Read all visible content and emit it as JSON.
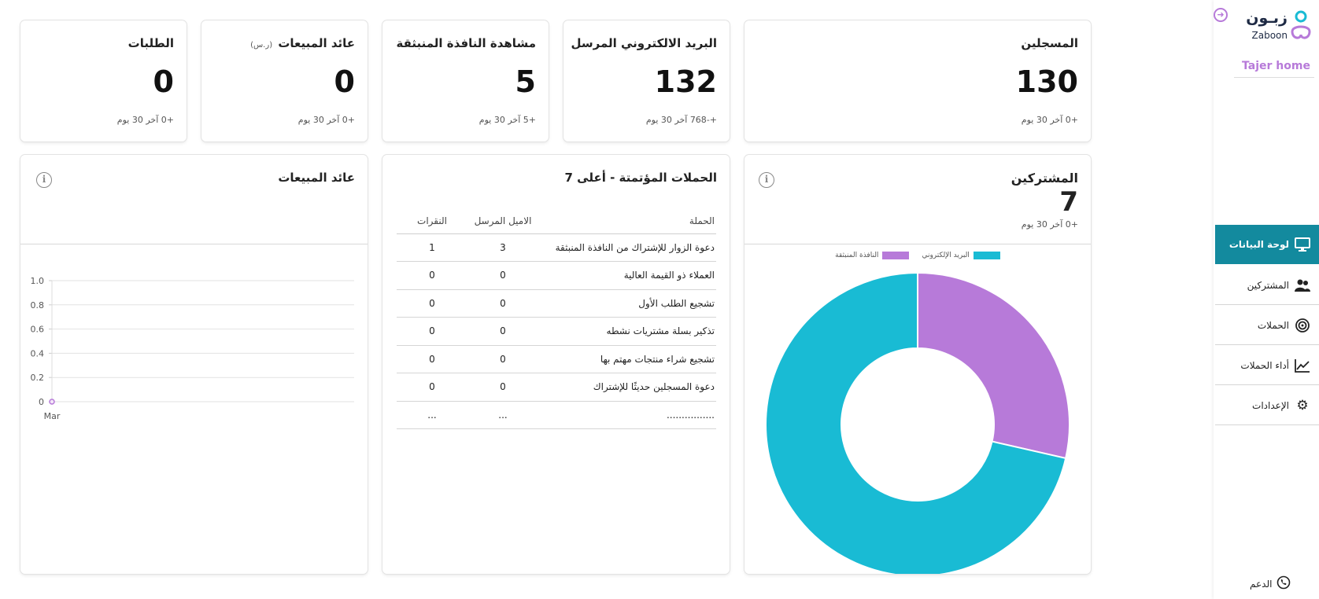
{
  "stats": [
    {
      "id": "subscribers",
      "title": "المسجلين",
      "value": "130",
      "sub": "+0 آخر 30 يوم"
    },
    {
      "id": "emails",
      "title": "البريد الالكتروني المرسل",
      "value": "132",
      "sub": "+-768 آخر 30 يوم"
    },
    {
      "id": "popup",
      "title": "مشاهدة النافذة المنبثقة",
      "value": "5",
      "sub": "+5 آخر 30 يوم"
    },
    {
      "id": "revenue",
      "title": "عائد المبيعات",
      "unit": "(ر.س)",
      "value": "0",
      "sub": "+0 آخر 30 يوم"
    },
    {
      "id": "orders",
      "title": "الطلبات",
      "value": "0",
      "sub": "+0 آخر 30 يوم"
    }
  ],
  "subscribers_panel": {
    "title": "المشتركين",
    "value": "7",
    "sub": "+0 آخر 30 يوم",
    "info_icon": "info-icon"
  },
  "campaigns_panel": {
    "title": "الحملات المؤتمتة - أعلى 7",
    "headers": {
      "campaign": "الحملة",
      "sent": "الاميل المرسل",
      "clicks": "النقرات"
    },
    "rows": [
      {
        "campaign": "دعوة الزوار للإشتراك من النافذة المنبثقة",
        "sent": "3",
        "clicks": "1"
      },
      {
        "campaign": "العملاء ذو القيمة العالية",
        "sent": "0",
        "clicks": "0"
      },
      {
        "campaign": "تشجيع الطلب الأول",
        "sent": "0",
        "clicks": "0"
      },
      {
        "campaign": "تذكير بسلة مشتريات نشطه",
        "sent": "0",
        "clicks": "0"
      },
      {
        "campaign": "تشجيع شراء منتجات مهتم بها",
        "sent": "0",
        "clicks": "0"
      },
      {
        "campaign": "دعوة المسجلين حديثًا للإشتراك",
        "sent": "0",
        "clicks": "0"
      },
      {
        "campaign": "................",
        "sent": "...",
        "clicks": "..."
      }
    ]
  },
  "revenue_panel": {
    "title": "عائد المبيعات",
    "info_icon": "info-icon"
  },
  "chart_data": [
    {
      "type": "pie",
      "style": "doughnut",
      "legend_position": "top",
      "series": [
        {
          "name": "البريد الإلكتروني",
          "value": 5,
          "color": "#19bbd4"
        },
        {
          "name": "النافذة المنبثقة",
          "value": 2,
          "color": "#b77ad9"
        }
      ]
    },
    {
      "type": "line",
      "legend_position": "top",
      "series": [
        {
          "name": "عائد المبيعات",
          "color": "#b77ad9",
          "values": [
            0
          ]
        }
      ],
      "categories": [
        "Mar"
      ],
      "ylim": [
        0,
        1.0
      ],
      "yticks": [
        "1.0",
        "0.8",
        "0.6",
        "0.4",
        "0.2",
        "0"
      ],
      "grid": true
    }
  ],
  "sidebar": {
    "logo_arabic": "زبـون",
    "logo_latin": "Zaboon",
    "store_name": "Tajer home",
    "collapse_icon": "arrow-right-circle-icon",
    "items": [
      {
        "label": "لوحة البيانات",
        "icon": "monitor-icon",
        "active": true
      },
      {
        "label": "المشتركين",
        "icon": "users-icon",
        "active": false
      },
      {
        "label": "الحملات",
        "icon": "target-icon",
        "active": false
      },
      {
        "label": "أداء الحملات",
        "icon": "trend-chart-icon",
        "active": false
      },
      {
        "label": "الإعدادات",
        "icon": "gears-icon",
        "active": false
      }
    ],
    "support_label": "الدعم",
    "support_icon": "whatsapp-icon"
  },
  "colors": {
    "accent": "#138a9e",
    "cyan": "#19bbd4",
    "purple": "#b77ad9"
  }
}
